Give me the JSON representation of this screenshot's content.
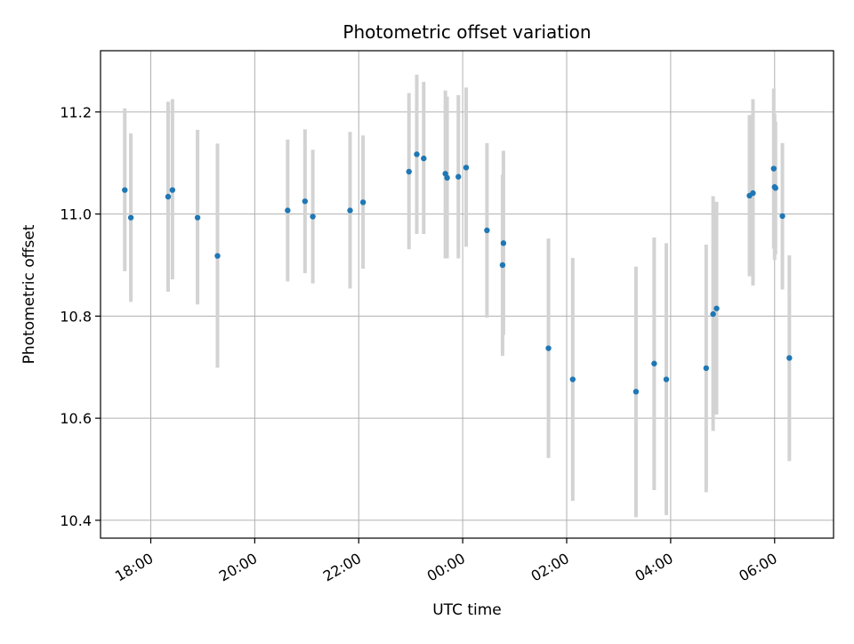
{
  "chart_data": {
    "type": "scatter",
    "title": "Photometric offset variation",
    "xlabel": "UTC time",
    "ylabel": "Photometric offset",
    "x_ticks": [
      "18:00",
      "20:00",
      "22:00",
      "00:00",
      "02:00",
      "04:00",
      "06:00"
    ],
    "y_ticks": [
      "10.4",
      "10.6",
      "10.8",
      "11.0",
      "11.2"
    ],
    "xlim": [
      "17:02",
      "07:08"
    ],
    "ylim": [
      10.365,
      11.32
    ],
    "grid": true,
    "colors": {
      "points": "#1f77b4",
      "errorbars": "#d3d3d3",
      "grid": "#b0b0b0"
    },
    "series": [
      {
        "points": [
          {
            "x": "17:30",
            "y": 11.047,
            "err": [
              10.888,
              11.207
            ]
          },
          {
            "x": "17:37",
            "y": 10.993,
            "err": [
              10.828,
              11.158
            ]
          },
          {
            "x": "18:20",
            "y": 11.034,
            "err": [
              10.848,
              11.22
            ]
          },
          {
            "x": "18:25",
            "y": 11.047,
            "err": [
              10.872,
              11.225
            ]
          },
          {
            "x": "18:54",
            "y": 10.993,
            "err": [
              10.823,
              11.165
            ]
          },
          {
            "x": "19:17",
            "y": 10.918,
            "err": [
              10.699,
              11.138
            ]
          },
          {
            "x": "20:38",
            "y": 11.007,
            "err": [
              10.868,
              11.146
            ]
          },
          {
            "x": "20:58",
            "y": 11.025,
            "err": [
              10.884,
              11.166
            ]
          },
          {
            "x": "21:07",
            "y": 10.995,
            "err": [
              10.864,
              11.126
            ]
          },
          {
            "x": "21:50",
            "y": 11.007,
            "err": [
              10.854,
              11.161
            ]
          },
          {
            "x": "22:05",
            "y": 11.023,
            "err": [
              10.893,
              11.154
            ]
          },
          {
            "x": "22:58",
            "y": 11.083,
            "err": [
              10.931,
              11.237
            ]
          },
          {
            "x": "23:07",
            "y": 11.117,
            "err": [
              10.961,
              11.273
            ]
          },
          {
            "x": "23:15",
            "y": 11.109,
            "err": [
              10.961,
              11.259
            ]
          },
          {
            "x": "23:40",
            "y": 11.079,
            "err": [
              10.913,
              11.242
            ]
          },
          {
            "x": "23:42",
            "y": 11.071,
            "err": [
              10.913,
              11.23
            ]
          },
          {
            "x": "23:55",
            "y": 11.073,
            "err": [
              10.913,
              11.233
            ]
          },
          {
            "x": "00:04",
            "y": 11.091,
            "err": [
              10.936,
              11.248
            ]
          },
          {
            "x": "00:28",
            "y": 10.968,
            "err": [
              10.797,
              11.139
            ]
          },
          {
            "x": "00:46",
            "y": 10.9,
            "err": [
              10.722,
              11.077
            ]
          },
          {
            "x": "00:47",
            "y": 10.943,
            "err": [
              10.763,
              11.124
            ]
          },
          {
            "x": "01:39",
            "y": 10.737,
            "err": [
              10.522,
              10.952
            ]
          },
          {
            "x": "02:07",
            "y": 10.676,
            "err": [
              10.438,
              10.914
            ]
          },
          {
            "x": "03:20",
            "y": 10.652,
            "err": [
              10.406,
              10.897
            ]
          },
          {
            "x": "03:41",
            "y": 10.707,
            "err": [
              10.459,
              10.954
            ]
          },
          {
            "x": "03:55",
            "y": 10.676,
            "err": [
              10.41,
              10.943
            ]
          },
          {
            "x": "04:41",
            "y": 10.698,
            "err": [
              10.455,
              10.94
            ]
          },
          {
            "x": "04:49",
            "y": 10.804,
            "err": [
              10.575,
              11.035
            ]
          },
          {
            "x": "04:53",
            "y": 10.815,
            "err": [
              10.607,
              11.024
            ]
          },
          {
            "x": "05:31",
            "y": 11.036,
            "err": [
              10.878,
              11.194
            ]
          },
          {
            "x": "05:35",
            "y": 11.041,
            "err": [
              10.86,
              11.225
            ]
          },
          {
            "x": "05:59",
            "y": 11.089,
            "err": [
              10.932,
              11.246
            ]
          },
          {
            "x": "06:00",
            "y": 11.053,
            "err": [
              10.91,
              11.196
            ]
          },
          {
            "x": "06:01",
            "y": 11.051,
            "err": [
              10.921,
              11.181
            ]
          },
          {
            "x": "06:09",
            "y": 10.996,
            "err": [
              10.852,
              11.139
            ]
          },
          {
            "x": "06:17",
            "y": 10.718,
            "err": [
              10.516,
              10.919
            ]
          }
        ]
      }
    ]
  }
}
